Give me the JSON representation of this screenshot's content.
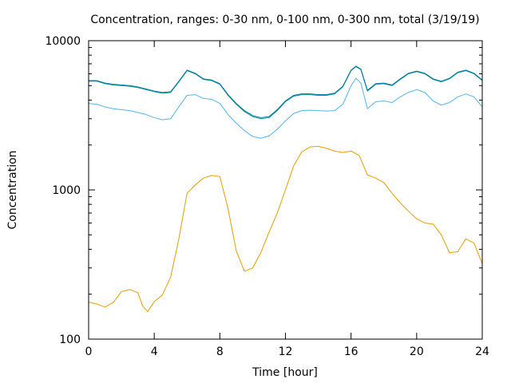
{
  "chart_data": {
    "type": "line",
    "title": "Concentration, ranges: 0-30 nm, 0-100 nm, 0-300 nm, total (3/19/19)",
    "xlabel": "Time [hour]",
    "ylabel": "Concentration",
    "xlim": [
      0,
      24
    ],
    "ylim": [
      100,
      10000
    ],
    "yscale": "log",
    "grid": false,
    "legend": "none",
    "xticks": [
      0,
      4,
      8,
      12,
      16,
      20,
      24
    ],
    "yticks": [
      100,
      1000,
      10000
    ],
    "series": [
      {
        "color": "#e69f00",
        "points": [
          [
            0,
            177
          ],
          [
            0.5,
            172
          ],
          [
            1,
            164
          ],
          [
            1.5,
            176
          ],
          [
            2,
            208
          ],
          [
            2.5,
            215
          ],
          [
            3,
            205
          ],
          [
            3.3,
            166
          ],
          [
            3.6,
            153
          ],
          [
            4,
            178
          ],
          [
            4.5,
            198
          ],
          [
            5,
            260
          ],
          [
            5.5,
            470
          ],
          [
            6,
            950
          ],
          [
            6.5,
            1080
          ],
          [
            7,
            1200
          ],
          [
            7.5,
            1250
          ],
          [
            8,
            1230
          ],
          [
            8.5,
            750
          ],
          [
            9,
            390
          ],
          [
            9.5,
            285
          ],
          [
            10,
            300
          ],
          [
            10.5,
            380
          ],
          [
            11,
            520
          ],
          [
            11.5,
            700
          ],
          [
            12,
            1000
          ],
          [
            12.5,
            1450
          ],
          [
            13,
            1800
          ],
          [
            13.5,
            1940
          ],
          [
            14,
            1960
          ],
          [
            14.5,
            1900
          ],
          [
            15,
            1820
          ],
          [
            15.5,
            1780
          ],
          [
            16,
            1820
          ],
          [
            16.5,
            1700
          ],
          [
            17,
            1260
          ],
          [
            17.5,
            1200
          ],
          [
            18,
            1120
          ],
          [
            18.5,
            950
          ],
          [
            19,
            820
          ],
          [
            19.5,
            720
          ],
          [
            20,
            640
          ],
          [
            20.5,
            600
          ],
          [
            21,
            590
          ],
          [
            21.5,
            500
          ],
          [
            22,
            380
          ],
          [
            22.5,
            385
          ],
          [
            23,
            470
          ],
          [
            23.5,
            440
          ],
          [
            24,
            320
          ]
        ]
      },
      {
        "color": "#56b4e9",
        "points": [
          [
            0,
            3800
          ],
          [
            0.5,
            3750
          ],
          [
            1,
            3600
          ],
          [
            1.5,
            3500
          ],
          [
            2,
            3450
          ],
          [
            2.5,
            3400
          ],
          [
            3,
            3300
          ],
          [
            3.5,
            3200
          ],
          [
            4,
            3050
          ],
          [
            4.5,
            2950
          ],
          [
            5,
            3000
          ],
          [
            5.5,
            3600
          ],
          [
            6,
            4300
          ],
          [
            6.5,
            4350
          ],
          [
            7,
            4100
          ],
          [
            7.5,
            4050
          ],
          [
            8,
            3800
          ],
          [
            8.5,
            3200
          ],
          [
            9,
            2800
          ],
          [
            9.5,
            2500
          ],
          [
            10,
            2280
          ],
          [
            10.5,
            2220
          ],
          [
            11,
            2300
          ],
          [
            11.5,
            2550
          ],
          [
            12,
            2900
          ],
          [
            12.5,
            3250
          ],
          [
            13,
            3400
          ],
          [
            13.5,
            3420
          ],
          [
            14,
            3400
          ],
          [
            14.5,
            3380
          ],
          [
            15,
            3400
          ],
          [
            15.5,
            3750
          ],
          [
            16,
            5000
          ],
          [
            16.3,
            5600
          ],
          [
            16.6,
            5200
          ],
          [
            17,
            3500
          ],
          [
            17.5,
            3900
          ],
          [
            18,
            3950
          ],
          [
            18.5,
            3850
          ],
          [
            19,
            4200
          ],
          [
            19.5,
            4500
          ],
          [
            20,
            4700
          ],
          [
            20.5,
            4500
          ],
          [
            21,
            3950
          ],
          [
            21.5,
            3700
          ],
          [
            22,
            3850
          ],
          [
            22.5,
            4200
          ],
          [
            23,
            4400
          ],
          [
            23.5,
            4200
          ],
          [
            24,
            3600
          ]
        ]
      },
      {
        "color": "#009e73",
        "points": [
          [
            0,
            5350
          ],
          [
            0.5,
            5350
          ],
          [
            1,
            5150
          ],
          [
            1.5,
            5050
          ],
          [
            2,
            5000
          ],
          [
            2.5,
            4950
          ],
          [
            3,
            4850
          ],
          [
            3.5,
            4700
          ],
          [
            4,
            4550
          ],
          [
            4.5,
            4450
          ],
          [
            5,
            4500
          ],
          [
            5.5,
            5300
          ],
          [
            6,
            6300
          ],
          [
            6.5,
            6000
          ],
          [
            7,
            5500
          ],
          [
            7.5,
            5400
          ],
          [
            8,
            5100
          ],
          [
            8.5,
            4300
          ],
          [
            9,
            3750
          ],
          [
            9.5,
            3350
          ],
          [
            10,
            3100
          ],
          [
            10.5,
            3000
          ],
          [
            11,
            3050
          ],
          [
            11.5,
            3400
          ],
          [
            12,
            3900
          ],
          [
            12.5,
            4250
          ],
          [
            13,
            4350
          ],
          [
            13.5,
            4350
          ],
          [
            14,
            4300
          ],
          [
            14.5,
            4300
          ],
          [
            15,
            4400
          ],
          [
            15.5,
            4900
          ],
          [
            16,
            6300
          ],
          [
            16.3,
            6700
          ],
          [
            16.6,
            6400
          ],
          [
            17,
            4600
          ],
          [
            17.5,
            5100
          ],
          [
            18,
            5150
          ],
          [
            18.5,
            5000
          ],
          [
            19,
            5500
          ],
          [
            19.5,
            6000
          ],
          [
            20,
            6200
          ],
          [
            20.5,
            6000
          ],
          [
            21,
            5500
          ],
          [
            21.5,
            5300
          ],
          [
            22,
            5550
          ],
          [
            22.5,
            6100
          ],
          [
            23,
            6300
          ],
          [
            23.5,
            6000
          ],
          [
            24,
            5400
          ]
        ]
      },
      {
        "color": "#0072b2",
        "points": [
          [
            0,
            5400
          ],
          [
            0.5,
            5400
          ],
          [
            1,
            5200
          ],
          [
            1.5,
            5100
          ],
          [
            2,
            5050
          ],
          [
            2.5,
            5000
          ],
          [
            3,
            4900
          ],
          [
            3.5,
            4750
          ],
          [
            4,
            4600
          ],
          [
            4.5,
            4500
          ],
          [
            5,
            4550
          ],
          [
            5.5,
            5350
          ],
          [
            6,
            6350
          ],
          [
            6.5,
            6050
          ],
          [
            7,
            5550
          ],
          [
            7.5,
            5450
          ],
          [
            8,
            5150
          ],
          [
            8.5,
            4350
          ],
          [
            9,
            3800
          ],
          [
            9.5,
            3400
          ],
          [
            10,
            3150
          ],
          [
            10.5,
            3050
          ],
          [
            11,
            3100
          ],
          [
            11.5,
            3450
          ],
          [
            12,
            3950
          ],
          [
            12.5,
            4300
          ],
          [
            13,
            4400
          ],
          [
            13.5,
            4400
          ],
          [
            14,
            4350
          ],
          [
            14.5,
            4350
          ],
          [
            15,
            4450
          ],
          [
            15.5,
            4950
          ],
          [
            16,
            6350
          ],
          [
            16.3,
            6750
          ],
          [
            16.6,
            6450
          ],
          [
            17,
            4650
          ],
          [
            17.5,
            5150
          ],
          [
            18,
            5200
          ],
          [
            18.5,
            5050
          ],
          [
            19,
            5550
          ],
          [
            19.5,
            6050
          ],
          [
            20,
            6250
          ],
          [
            20.5,
            6050
          ],
          [
            21,
            5550
          ],
          [
            21.5,
            5350
          ],
          [
            22,
            5600
          ],
          [
            22.5,
            6150
          ],
          [
            23,
            6350
          ],
          [
            23.5,
            6050
          ],
          [
            24,
            5450
          ]
        ]
      }
    ]
  }
}
